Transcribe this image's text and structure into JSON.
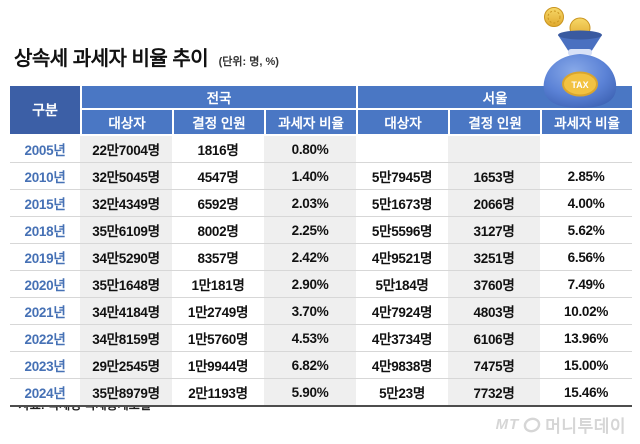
{
  "title": "상속세 과세자 비율 추이",
  "unit_note": "(단위: 명, %)",
  "source_note": "*자료: 국세청 국세통계포털",
  "logo": {
    "mt": "MT",
    "brand": "머니투데이"
  },
  "bag_icon": {
    "badge": "TAX"
  },
  "colors": {
    "header_blue": "#4a77c4",
    "corner_navy": "#3c5fa6",
    "band_gray": "#efefef",
    "year_blue": "#4671b5",
    "coin_gold": "#f2c242"
  },
  "table": {
    "corner_header": "구분",
    "group_headers": [
      "전국",
      "서울"
    ],
    "sub_headers": [
      "대상자",
      "결정 인원",
      "과세자 비율"
    ]
  },
  "chart_data": {
    "type": "table",
    "title": "상속세 과세자 비율 추이",
    "unit": "명, %",
    "columns": [
      "구분",
      "전국 대상자",
      "전국 결정 인원",
      "전국 과세자 비율",
      "서울 대상자",
      "서울 결정 인원",
      "서울 과세자 비율"
    ],
    "rows": [
      {
        "year": "2005년",
        "national": [
          "22만7004명",
          "1816명",
          "0.80%"
        ],
        "seoul": [
          "",
          "",
          ""
        ]
      },
      {
        "year": "2010년",
        "national": [
          "32만5045명",
          "4547명",
          "1.40%"
        ],
        "seoul": [
          "5만7945명",
          "1653명",
          "2.85%"
        ]
      },
      {
        "year": "2015년",
        "national": [
          "32만4349명",
          "6592명",
          "2.03%"
        ],
        "seoul": [
          "5만1673명",
          "2066명",
          "4.00%"
        ]
      },
      {
        "year": "2018년",
        "national": [
          "35만6109명",
          "8002명",
          "2.25%"
        ],
        "seoul": [
          "5만5596명",
          "3127명",
          "5.62%"
        ]
      },
      {
        "year": "2019년",
        "national": [
          "34만5290명",
          "8357명",
          "2.42%"
        ],
        "seoul": [
          "4만9521명",
          "3251명",
          "6.56%"
        ]
      },
      {
        "year": "2020년",
        "national": [
          "35만1648명",
          "1만181명",
          "2.90%"
        ],
        "seoul": [
          "5만184명",
          "3760명",
          "7.49%"
        ]
      },
      {
        "year": "2021년",
        "national": [
          "34만4184명",
          "1만2749명",
          "3.70%"
        ],
        "seoul": [
          "4만7924명",
          "4803명",
          "10.02%"
        ]
      },
      {
        "year": "2022년",
        "national": [
          "34만8159명",
          "1만5760명",
          "4.53%"
        ],
        "seoul": [
          "4만3734명",
          "6106명",
          "13.96%"
        ]
      },
      {
        "year": "2023년",
        "national": [
          "29만2545명",
          "1만9944명",
          "6.82%"
        ],
        "seoul": [
          "4만9838명",
          "7475명",
          "15.00%"
        ]
      },
      {
        "year": "2024년",
        "national": [
          "35만8979명",
          "2만1193명",
          "5.90%"
        ],
        "seoul": [
          "5만23명",
          "7732명",
          "15.46%"
        ]
      }
    ]
  }
}
